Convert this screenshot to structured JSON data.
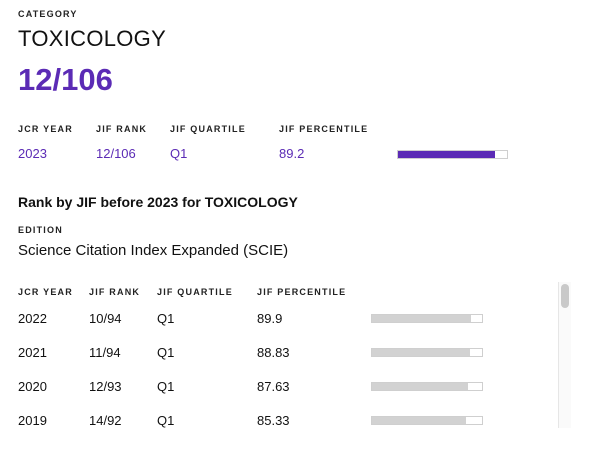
{
  "header": {
    "category_label": "CATEGORY",
    "category_name": "TOXICOLOGY",
    "rank_display": "12/106"
  },
  "current": {
    "columns": [
      "JCR YEAR",
      "JIF RANK",
      "JIF QUARTILE",
      "JIF PERCENTILE"
    ],
    "year": "2023",
    "rank": "12/106",
    "quartile": "Q1",
    "percentile": "89.2",
    "bar_fraction": 0.892
  },
  "history": {
    "title": "Rank by JIF before 2023 for TOXICOLOGY",
    "edition_label": "EDITION",
    "edition": "Science Citation Index Expanded (SCIE)",
    "columns": [
      "JCR YEAR",
      "JIF RANK",
      "JIF QUARTILE",
      "JIF PERCENTILE"
    ],
    "rows": [
      {
        "year": "2022",
        "rank": "10/94",
        "quartile": "Q1",
        "percentile": "89.9",
        "bar_fraction": 0.899
      },
      {
        "year": "2021",
        "rank": "11/94",
        "quartile": "Q1",
        "percentile": "88.83",
        "bar_fraction": 0.8883
      },
      {
        "year": "2020",
        "rank": "12/93",
        "quartile": "Q1",
        "percentile": "87.63",
        "bar_fraction": 0.8763
      },
      {
        "year": "2019",
        "rank": "14/92",
        "quartile": "Q1",
        "percentile": "85.33",
        "bar_fraction": 0.8533
      }
    ]
  },
  "colors": {
    "accent": "#5b2bb5",
    "history_bar": "#d2d2d2"
  }
}
